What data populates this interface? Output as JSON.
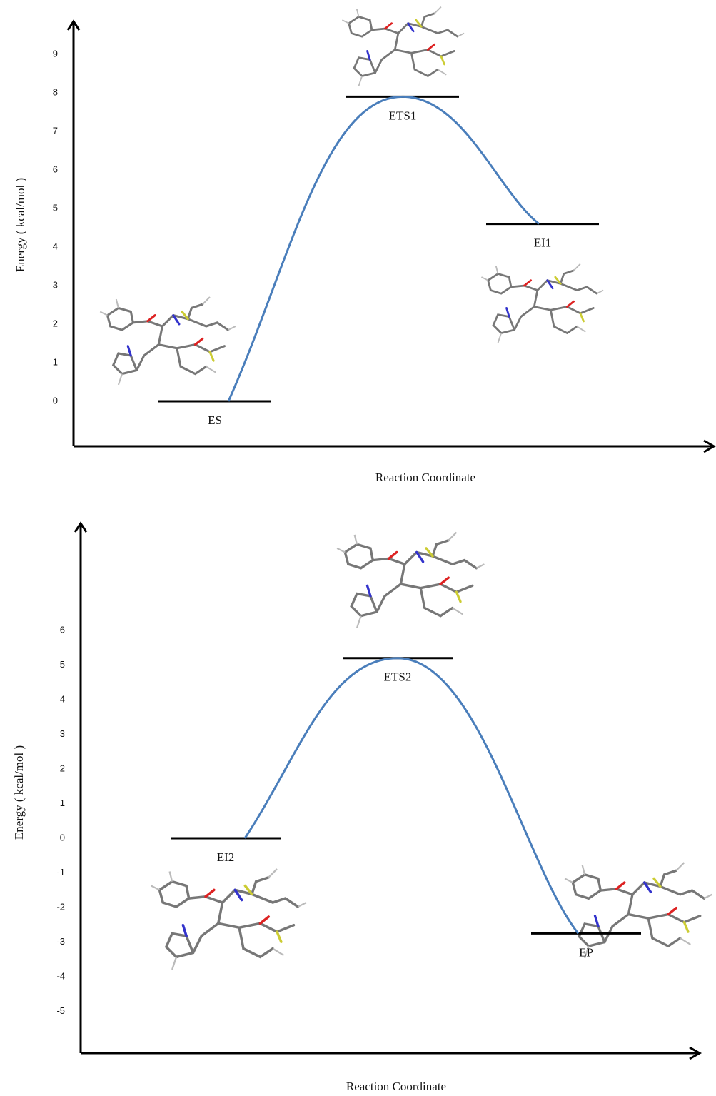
{
  "chart_data": [
    {
      "type": "line",
      "categories": [
        "ES",
        "ETS1",
        "EI1"
      ],
      "values": [
        0,
        7.9,
        4.6
      ],
      "color": "#4a7ebb",
      "ylabel": "Energy ( kcal/mol )",
      "xlabel": "Reaction Coordinate",
      "ylim": [
        -1.17,
        9.85
      ],
      "yticks": [
        0,
        1,
        2,
        3,
        4,
        5,
        6,
        7,
        8,
        9
      ]
    },
    {
      "type": "line",
      "categories": [
        "EI2",
        "ETS2",
        "EP"
      ],
      "values": [
        0,
        5.2,
        -2.75
      ],
      "color": "#4a7ebb",
      "ylabel": "Energy ( kcal/mol )",
      "xlabel": "Reaction Coordinate",
      "ylim": [
        -6.2,
        9.09
      ],
      "yticks": [
        -5,
        -4,
        -3,
        -2,
        -1,
        0,
        1,
        2,
        3,
        4,
        5,
        6
      ]
    }
  ]
}
